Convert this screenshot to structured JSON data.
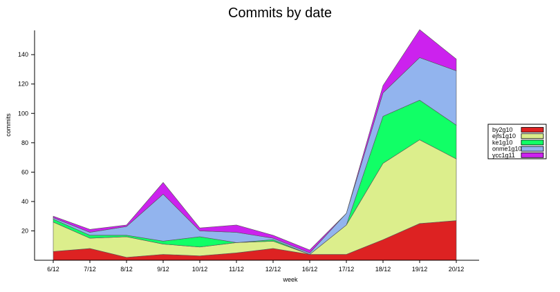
{
  "chart_data": {
    "type": "area",
    "stacked": true,
    "title": "Commits by date",
    "xlabel": "week",
    "ylabel": "commits",
    "categories": [
      "6/12",
      "7/12",
      "8/12",
      "9/12",
      "10/12",
      "11/12",
      "12/12",
      "16/12",
      "17/12",
      "18/12",
      "19/12",
      "20/12"
    ],
    "ylim": [
      0,
      157
    ],
    "yticks": [
      20,
      40,
      60,
      80,
      100,
      120,
      140
    ],
    "legend_position": "right",
    "grid": false,
    "series": [
      {
        "name": "by2g10",
        "color": "#dd2222",
        "values": [
          6,
          8,
          2,
          4,
          3,
          5,
          8,
          4,
          4,
          14,
          25,
          27
        ]
      },
      {
        "name": "ejfs1g10",
        "color": "#dcee8c",
        "values": [
          20,
          7,
          14,
          7,
          6,
          7,
          5,
          0,
          20,
          52,
          57,
          42
        ]
      },
      {
        "name": "ke1g10",
        "color": "#11ff66",
        "values": [
          2,
          2,
          1,
          2,
          7,
          0,
          1,
          0,
          0,
          32,
          27,
          23
        ]
      },
      {
        "name": "onme1g10",
        "color": "#92b4ee",
        "values": [
          1,
          2,
          6,
          32,
          4,
          7,
          1,
          1,
          8,
          16,
          29,
          37
        ]
      },
      {
        "name": "ycc1g11",
        "color": "#cc22ee",
        "values": [
          1,
          2,
          1,
          8,
          2,
          5,
          2,
          2,
          0,
          5,
          19,
          8
        ]
      }
    ]
  }
}
